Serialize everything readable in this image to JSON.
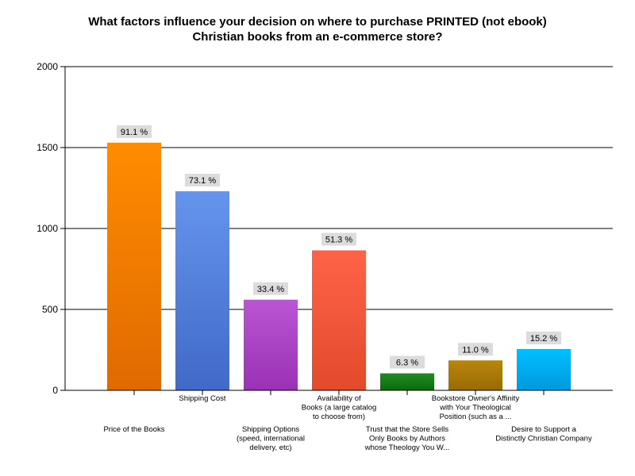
{
  "chart_data": {
    "type": "bar",
    "title": "What factors influence your decision on where to purchase PRINTED (not ebook) Christian books from an e-commerce store?",
    "title_lines": [
      "What factors influence your decision on where to purchase PRINTED (not ebook)",
      "Christian books from an e-commerce store?"
    ],
    "categories": [
      "Price of the Books",
      "Shipping Cost",
      "Shipping Options (speed, international delivery, etc)",
      "Availability of Books (a large catalog to choose from)",
      "Trust that the Store Sells Only Books by Authors whose Theology You W...",
      "Bookstore Owner's Affinity with Your Theological Position (such as a ...",
      "Desire to Support a Distinctly Christian Company"
    ],
    "category_label_lines": [
      [
        "Price of the Books"
      ],
      [
        "Shipping Cost"
      ],
      [
        "Shipping Options",
        "(speed, international",
        "delivery, etc)"
      ],
      [
        "Availability of",
        "Books (a large catalog",
        "to choose from)"
      ],
      [
        "Trust that the Store Sells",
        "Only Books by Authors",
        "whose Theology You W..."
      ],
      [
        "Bookstore Owner's Affinity",
        "with Your Theological",
        "Position (such as a ..."
      ],
      [
        "Desire to Support a",
        "Distinctly Christian Company"
      ]
    ],
    "values": [
      1530,
      1230,
      560,
      865,
      105,
      185,
      255
    ],
    "data_labels": [
      "91.1 %",
      "73.1 %",
      "33.4 %",
      "51.3 %",
      "6.3 %",
      "11.0 %",
      "15.2 %"
    ],
    "colors": [
      "#ff8c00",
      "#6495ed",
      "#ba55d3",
      "#ff6347",
      "#228b22",
      "#b8860b",
      "#00bfff"
    ],
    "colors_dark": [
      "#e06a00",
      "#4169c8",
      "#9932b4",
      "#e24a2b",
      "#0b6b0b",
      "#9a6a05",
      "#0099dd"
    ],
    "ylim": [
      0,
      2000
    ],
    "yticks": [
      0,
      500,
      1000,
      1500,
      2000
    ],
    "xlabel": "",
    "ylabel": "",
    "grid": true
  }
}
